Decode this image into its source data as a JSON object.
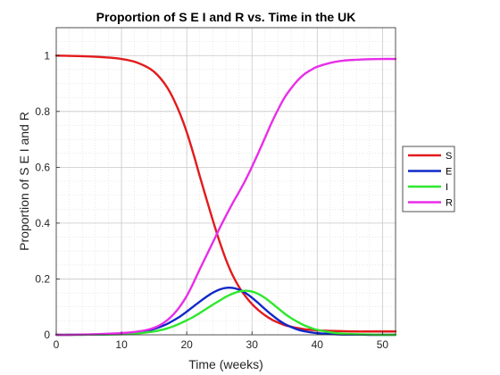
{
  "chart_data": {
    "type": "line",
    "title": "Proportion of S E I and R vs. Time in the UK",
    "xlabel": "Time (weeks)",
    "ylabel": "Proportion of S E I and R",
    "xlim": [
      0,
      52
    ],
    "ylim": [
      0,
      1.1
    ],
    "xticks": [
      0,
      10,
      20,
      30,
      40,
      50
    ],
    "yticks": [
      0,
      0.2,
      0.4,
      0.6,
      0.8,
      1
    ],
    "xtick_labels": [
      "0",
      "10",
      "20",
      "30",
      "40",
      "50"
    ],
    "ytick_labels": [
      "0",
      "0.2",
      "0.4",
      "0.6",
      "0.8",
      "1"
    ],
    "grid": "major and minor, dotted",
    "legend_position": "outside-right",
    "x": [
      0,
      2,
      4,
      6,
      8,
      10,
      12,
      14,
      15,
      16,
      17,
      18,
      19,
      20,
      21,
      22,
      23,
      24,
      25,
      26,
      27,
      28,
      29,
      30,
      31,
      32,
      33,
      34,
      35,
      36,
      37,
      38,
      39,
      40,
      42,
      44,
      46,
      48,
      50,
      52
    ],
    "series": [
      {
        "name": "S",
        "color": "#e31a1c",
        "values": [
          1.0,
          0.999,
          0.998,
          0.996,
          0.993,
          0.988,
          0.978,
          0.958,
          0.942,
          0.918,
          0.886,
          0.843,
          0.79,
          0.726,
          0.65,
          0.568,
          0.488,
          0.41,
          0.336,
          0.27,
          0.215,
          0.172,
          0.138,
          0.11,
          0.088,
          0.07,
          0.055,
          0.044,
          0.035,
          0.029,
          0.024,
          0.02,
          0.018,
          0.016,
          0.014,
          0.013,
          0.012,
          0.012,
          0.012,
          0.012
        ]
      },
      {
        "name": "E",
        "color": "#1028c8",
        "values": [
          0.0,
          0.0,
          0.001,
          0.001,
          0.002,
          0.004,
          0.008,
          0.015,
          0.021,
          0.029,
          0.039,
          0.052,
          0.066,
          0.083,
          0.101,
          0.119,
          0.136,
          0.151,
          0.162,
          0.168,
          0.168,
          0.162,
          0.15,
          0.133,
          0.113,
          0.092,
          0.072,
          0.054,
          0.039,
          0.028,
          0.019,
          0.013,
          0.009,
          0.006,
          0.003,
          0.001,
          0.001,
          0.0,
          0.0,
          0.0
        ]
      },
      {
        "name": "I",
        "color": "#2ee82e",
        "values": [
          0.0,
          0.0,
          0.0,
          0.001,
          0.001,
          0.002,
          0.004,
          0.009,
          0.012,
          0.017,
          0.023,
          0.031,
          0.041,
          0.052,
          0.064,
          0.078,
          0.093,
          0.108,
          0.122,
          0.136,
          0.147,
          0.155,
          0.158,
          0.155,
          0.146,
          0.132,
          0.114,
          0.095,
          0.076,
          0.06,
          0.046,
          0.034,
          0.025,
          0.018,
          0.009,
          0.004,
          0.002,
          0.001,
          0.0,
          0.0
        ]
      },
      {
        "name": "R",
        "color": "#e82ee8",
        "values": [
          0.0,
          0.0,
          0.001,
          0.002,
          0.004,
          0.006,
          0.01,
          0.018,
          0.025,
          0.036,
          0.052,
          0.074,
          0.103,
          0.139,
          0.185,
          0.235,
          0.283,
          0.331,
          0.38,
          0.426,
          0.47,
          0.511,
          0.554,
          0.602,
          0.653,
          0.706,
          0.759,
          0.807,
          0.85,
          0.883,
          0.911,
          0.933,
          0.948,
          0.96,
          0.974,
          0.982,
          0.985,
          0.987,
          0.988,
          0.988
        ]
      }
    ]
  }
}
